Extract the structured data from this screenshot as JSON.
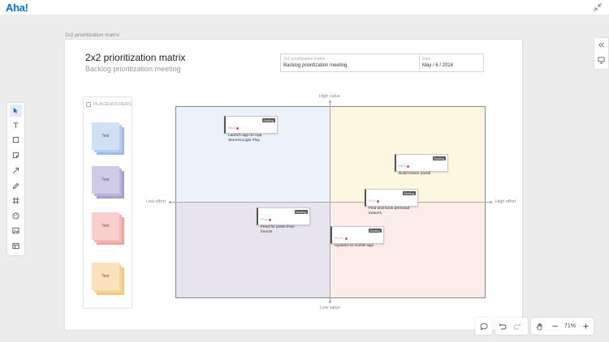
{
  "app": {
    "logo_text": "Aha!"
  },
  "board": {
    "label": "2x2 prioritization matrix",
    "title": "2x2 prioritization matrix",
    "subtitle": "Backlog prioritization meeting",
    "info": {
      "name_label": "2x2 prioritization matrix",
      "name_value": "Backlog prioritization meeting",
      "date_label": "Date",
      "date_value": "May / 6 / 2024"
    }
  },
  "placeholders": {
    "header": "PLACEHOLDERS",
    "items": [
      {
        "text": "Text",
        "colors": [
          "#9dbcea",
          "#b5ccef",
          "#d2e0f6"
        ]
      },
      {
        "text": "Text",
        "colors": [
          "#a79fcf",
          "#bab4d9",
          "#cfcae6"
        ]
      },
      {
        "text": "Text",
        "colors": [
          "#f0a3a0",
          "#f4b8b6",
          "#f8cfcd"
        ]
      },
      {
        "text": "Text",
        "colors": [
          "#f5c680",
          "#f8d49d",
          "#fbe2bd"
        ]
      }
    ]
  },
  "matrix": {
    "axis_top": "High value",
    "axis_bottom": "Low value",
    "axis_left": "Low effort",
    "axis_right": "High effort",
    "quadrant_colors": {
      "tl": "#ecf2fc",
      "tr": "#fdf7e2",
      "bl": "#e8e4ef",
      "br": "#fcede9"
    }
  },
  "cards": [
    {
      "id": "FN-2",
      "status": "Backlog",
      "title": "Launch app on App Store/Google Play"
    },
    {
      "id": "FN-5",
      "status": "Backlog",
      "title": "Build trainer portal"
    },
    {
      "id": "FN-6",
      "status": "Backlog",
      "title": "Find and book personal trainers"
    },
    {
      "id": "FN-8",
      "status": "Backlog",
      "title": "Feed for posts from friends"
    },
    {
      "id": "FN-10",
      "status": "Backlog",
      "title": "Updates to mobile app"
    }
  ],
  "toolbar": {
    "tools": [
      "pointer-icon",
      "text-icon",
      "rectangle-icon",
      "sticky-note-icon",
      "arrow-icon",
      "pen-icon",
      "frame-icon",
      "palette-icon",
      "image-icon",
      "template-icon"
    ]
  },
  "zoom": {
    "level": "71%"
  }
}
